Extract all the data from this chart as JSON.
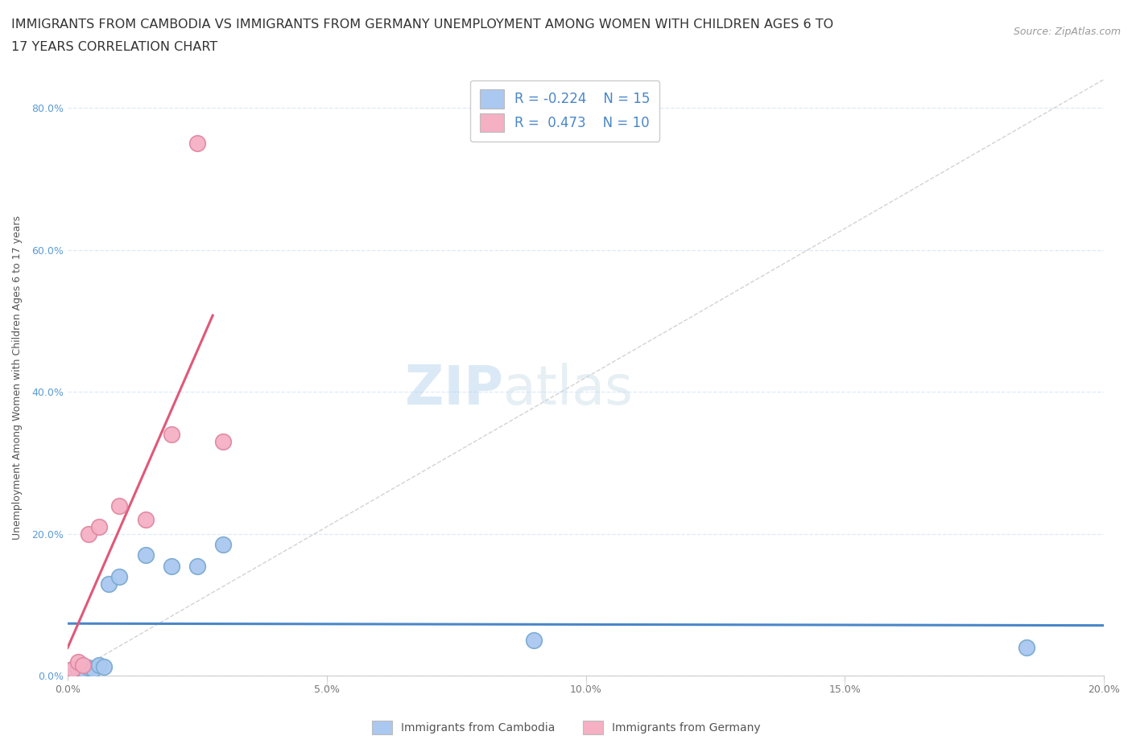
{
  "title_line1": "IMMIGRANTS FROM CAMBODIA VS IMMIGRANTS FROM GERMANY UNEMPLOYMENT AMONG WOMEN WITH CHILDREN AGES 6 TO",
  "title_line2": "17 YEARS CORRELATION CHART",
  "source": "Source: ZipAtlas.com",
  "ylabel": "Unemployment Among Women with Children Ages 6 to 17 years",
  "xlim": [
    0.0,
    0.2
  ],
  "ylim": [
    0.0,
    0.84
  ],
  "xticks": [
    0.0,
    0.05,
    0.1,
    0.15,
    0.2
  ],
  "yticks": [
    0.0,
    0.2,
    0.4,
    0.6,
    0.8
  ],
  "xtick_labels": [
    "0.0%",
    "5.0%",
    "10.0%",
    "15.0%",
    "20.0%"
  ],
  "ytick_labels": [
    "0.0%",
    "20.0%",
    "40.0%",
    "60.0%",
    "80.0%"
  ],
  "cambodia_color": "#aac8f0",
  "germany_color": "#f5b0c4",
  "cambodia_edge": "#7aaad0",
  "germany_edge": "#e088a0",
  "trendline_cambodia_color": "#4a86c8",
  "trendline_germany_color": "#e05878",
  "ref_line_color": "#c8c8c8",
  "watermark_zip": "ZIP",
  "watermark_atlas": "atlas",
  "legend_r_cambodia": "R = -0.224",
  "legend_n_cambodia": "N = 15",
  "legend_r_germany": "R =  0.473",
  "legend_n_germany": "N = 10",
  "legend_label_cambodia": "Immigrants from Cambodia",
  "legend_label_germany": "Immigrants from Germany",
  "cambodia_x": [
    0.001,
    0.002,
    0.003,
    0.004,
    0.005,
    0.006,
    0.007,
    0.008,
    0.01,
    0.015,
    0.02,
    0.025,
    0.03,
    0.09,
    0.185
  ],
  "cambodia_y": [
    0.01,
    0.008,
    0.009,
    0.012,
    0.01,
    0.015,
    0.013,
    0.13,
    0.14,
    0.17,
    0.155,
    0.155,
    0.185,
    0.05,
    0.04
  ],
  "germany_x": [
    0.001,
    0.002,
    0.003,
    0.004,
    0.006,
    0.01,
    0.015,
    0.02,
    0.025,
    0.03
  ],
  "germany_y": [
    0.01,
    0.02,
    0.015,
    0.2,
    0.21,
    0.24,
    0.22,
    0.34,
    0.75,
    0.33
  ],
  "background_color": "#ffffff",
  "grid_color": "#ddeaf8",
  "title_fontsize": 11.5,
  "axis_label_fontsize": 9,
  "tick_fontsize": 9,
  "legend_fontsize": 12,
  "source_fontsize": 9
}
